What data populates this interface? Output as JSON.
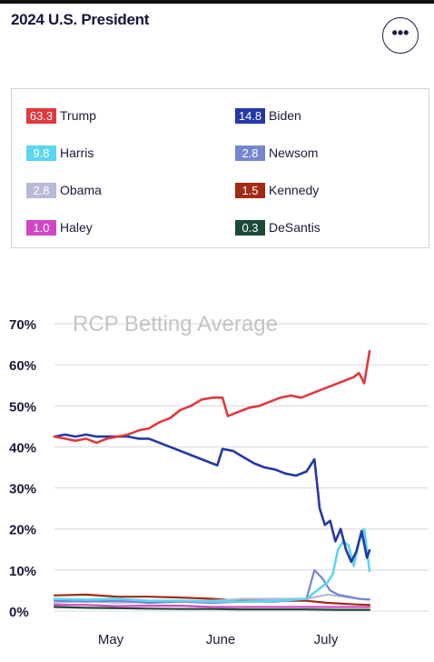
{
  "header": {
    "title": "2024 U.S. President",
    "more_label": "•••"
  },
  "candidates": [
    {
      "name": "Trump",
      "value": "63.3",
      "color": "#e0383e"
    },
    {
      "name": "Biden",
      "value": "14.8",
      "color": "#2438a8"
    },
    {
      "name": "Harris",
      "value": "9.8",
      "color": "#5ad6f0"
    },
    {
      "name": "Newsom",
      "value": "2.8",
      "color": "#7486d0"
    },
    {
      "name": "Obama",
      "value": "2.8",
      "color": "#b7bad6"
    },
    {
      "name": "Kennedy",
      "value": "1.5",
      "color": "#a32a14"
    },
    {
      "name": "Haley",
      "value": "1.0",
      "color": "#d246c4"
    },
    {
      "name": "DeSantis",
      "value": "0.3",
      "color": "#1c4a38"
    }
  ],
  "chart_data": {
    "type": "line",
    "title": "RCP Betting Average",
    "xlabel": "",
    "ylabel": "",
    "ylim": [
      0,
      70
    ],
    "y_ticks": [
      "0%",
      "10%",
      "20%",
      "30%",
      "40%",
      "50%",
      "60%",
      "70%"
    ],
    "x_ticks": [
      "May",
      "June",
      "July"
    ],
    "grid": true,
    "legend": "above chart",
    "series": [
      {
        "name": "Trump",
        "color": "#e0383e",
        "points": [
          [
            0,
            42.5
          ],
          [
            4,
            42
          ],
          [
            8,
            41.5
          ],
          [
            12,
            42
          ],
          [
            16,
            41
          ],
          [
            20,
            42
          ],
          [
            24,
            42.5
          ],
          [
            28,
            43
          ],
          [
            32,
            44
          ],
          [
            36,
            44.5
          ],
          [
            40,
            46
          ],
          [
            44,
            47
          ],
          [
            48,
            49
          ],
          [
            52,
            50
          ],
          [
            56,
            51.5
          ],
          [
            60,
            52
          ],
          [
            64,
            52
          ],
          [
            66,
            47.5
          ],
          [
            70,
            48.5
          ],
          [
            74,
            49.5
          ],
          [
            78,
            50
          ],
          [
            82,
            51
          ],
          [
            86,
            52
          ],
          [
            90,
            52.5
          ],
          [
            94,
            52
          ],
          [
            98,
            53
          ],
          [
            102,
            54
          ],
          [
            106,
            55
          ],
          [
            110,
            56
          ],
          [
            114,
            57
          ],
          [
            116,
            58
          ],
          [
            118,
            55.5
          ],
          [
            120,
            63.3
          ]
        ]
      },
      {
        "name": "Biden",
        "color": "#2438a8",
        "points": [
          [
            0,
            42.5
          ],
          [
            4,
            43
          ],
          [
            8,
            42.5
          ],
          [
            12,
            43
          ],
          [
            16,
            42.5
          ],
          [
            20,
            42.5
          ],
          [
            24,
            42.5
          ],
          [
            28,
            42.5
          ],
          [
            32,
            42
          ],
          [
            36,
            42
          ],
          [
            40,
            41
          ],
          [
            44,
            40
          ],
          [
            48,
            39
          ],
          [
            52,
            38
          ],
          [
            56,
            37
          ],
          [
            60,
            36
          ],
          [
            62,
            35.5
          ],
          [
            64,
            39.5
          ],
          [
            68,
            39
          ],
          [
            72,
            37.5
          ],
          [
            76,
            36
          ],
          [
            80,
            35
          ],
          [
            84,
            34.5
          ],
          [
            88,
            33.5
          ],
          [
            92,
            33
          ],
          [
            96,
            34
          ],
          [
            99,
            37
          ],
          [
            101,
            25
          ],
          [
            103,
            21
          ],
          [
            105,
            22
          ],
          [
            107,
            17
          ],
          [
            109,
            20
          ],
          [
            111,
            15
          ],
          [
            113,
            12
          ],
          [
            115,
            14.5
          ],
          [
            117,
            19.5
          ],
          [
            119,
            13
          ],
          [
            120,
            14.8
          ]
        ]
      },
      {
        "name": "Harris",
        "color": "#5ad6f0",
        "points": [
          [
            0,
            3
          ],
          [
            12,
            2.8
          ],
          [
            24,
            3
          ],
          [
            36,
            2.5
          ],
          [
            48,
            2.5
          ],
          [
            60,
            2.3
          ],
          [
            72,
            2.3
          ],
          [
            84,
            2.5
          ],
          [
            96,
            3
          ],
          [
            100,
            5
          ],
          [
            104,
            7
          ],
          [
            106,
            9
          ],
          [
            108,
            15
          ],
          [
            110,
            17
          ],
          [
            112,
            16
          ],
          [
            114,
            11
          ],
          [
            116,
            17
          ],
          [
            118,
            20
          ],
          [
            120,
            9.8
          ]
        ]
      },
      {
        "name": "Newsom",
        "color": "#7486d0",
        "points": [
          [
            0,
            2.5
          ],
          [
            12,
            2.3
          ],
          [
            24,
            2.5
          ],
          [
            36,
            2
          ],
          [
            48,
            2.3
          ],
          [
            60,
            2
          ],
          [
            72,
            2.3
          ],
          [
            84,
            2.3
          ],
          [
            96,
            3
          ],
          [
            99,
            10
          ],
          [
            102,
            8
          ],
          [
            105,
            5
          ],
          [
            108,
            4
          ],
          [
            112,
            3.5
          ],
          [
            116,
            3
          ],
          [
            120,
            2.8
          ]
        ]
      },
      {
        "name": "Obama",
        "color": "#b7bad6",
        "points": [
          [
            0,
            2
          ],
          [
            12,
            2.5
          ],
          [
            24,
            2
          ],
          [
            36,
            2.3
          ],
          [
            48,
            2.5
          ],
          [
            60,
            2.5
          ],
          [
            72,
            3
          ],
          [
            84,
            3
          ],
          [
            96,
            3
          ],
          [
            104,
            4
          ],
          [
            110,
            3.5
          ],
          [
            116,
            3
          ],
          [
            120,
            2.8
          ]
        ]
      },
      {
        "name": "Kennedy",
        "color": "#a32a14",
        "points": [
          [
            0,
            3.8
          ],
          [
            12,
            4
          ],
          [
            24,
            3.5
          ],
          [
            36,
            3.5
          ],
          [
            48,
            3.3
          ],
          [
            60,
            3
          ],
          [
            72,
            2.5
          ],
          [
            84,
            2.5
          ],
          [
            96,
            2.5
          ],
          [
            104,
            2
          ],
          [
            110,
            1.8
          ],
          [
            116,
            1.6
          ],
          [
            120,
            1.5
          ]
        ]
      },
      {
        "name": "Haley",
        "color": "#d246c4",
        "points": [
          [
            0,
            1.5
          ],
          [
            12,
            1.5
          ],
          [
            24,
            1.2
          ],
          [
            36,
            1.3
          ],
          [
            48,
            1.3
          ],
          [
            60,
            1
          ],
          [
            72,
            1
          ],
          [
            84,
            1
          ],
          [
            96,
            1
          ],
          [
            108,
            1
          ],
          [
            120,
            1.0
          ]
        ]
      },
      {
        "name": "DeSantis",
        "color": "#1c4a38",
        "points": [
          [
            0,
            1
          ],
          [
            12,
            0.8
          ],
          [
            24,
            0.7
          ],
          [
            36,
            0.6
          ],
          [
            48,
            0.5
          ],
          [
            60,
            0.5
          ],
          [
            72,
            0.4
          ],
          [
            84,
            0.4
          ],
          [
            96,
            0.4
          ],
          [
            108,
            0.3
          ],
          [
            120,
            0.3
          ]
        ]
      }
    ]
  }
}
